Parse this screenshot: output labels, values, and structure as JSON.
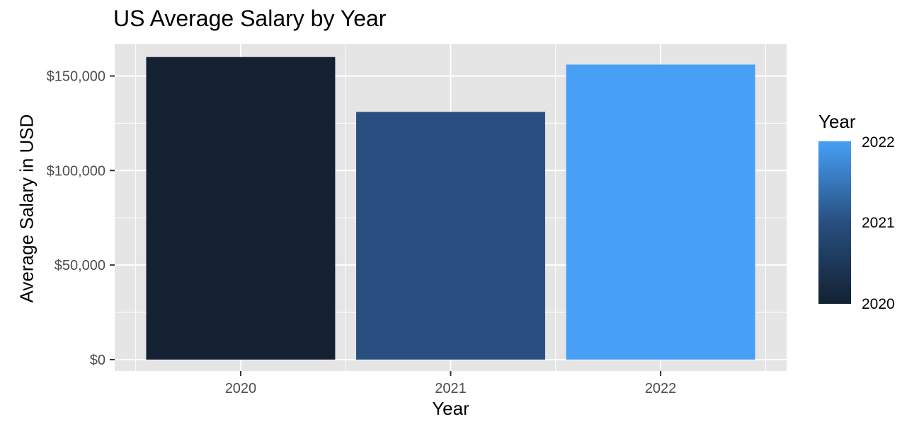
{
  "chart_data": {
    "type": "bar",
    "title": "US Average Salary by Year",
    "xlabel": "Year",
    "ylabel": "Average Salary in USD",
    "categories": [
      "2020",
      "2021",
      "2022"
    ],
    "values": [
      160000,
      131000,
      156000
    ],
    "ylim": [
      -6000,
      167000
    ],
    "yticks": [
      0,
      50000,
      100000,
      150000
    ],
    "ytick_labels": [
      "$0",
      "$50,000",
      "$100,000",
      "$150,000"
    ],
    "grid": true,
    "panel_background": "#E5E5E5",
    "grid_color": "#FFFFFF",
    "bar_colors": [
      "#132132",
      "#284F7F",
      "#479FF6"
    ],
    "legend": {
      "title": "Year",
      "type": "colorbar",
      "placement": "right",
      "labels": [
        "2022",
        "2021",
        "2020"
      ],
      "gradient": [
        "#132132",
        "#284F7F",
        "#479FF6"
      ]
    }
  }
}
